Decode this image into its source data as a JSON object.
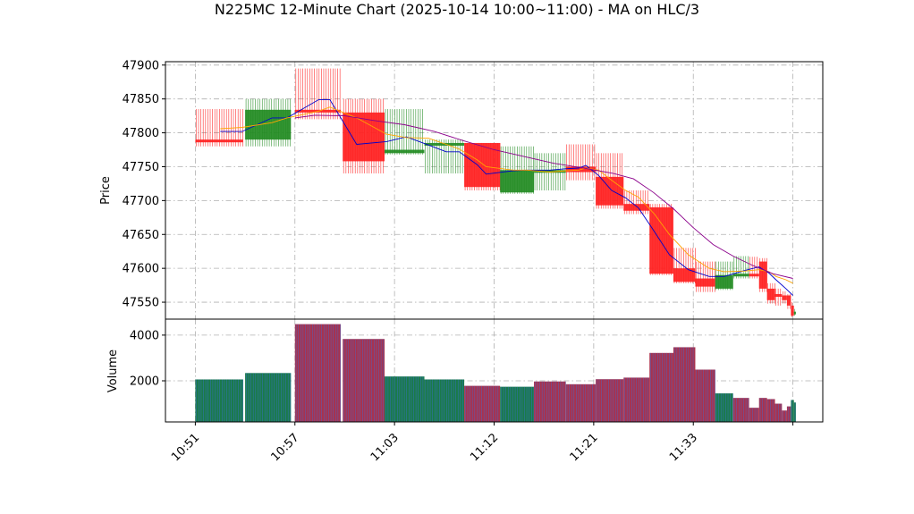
{
  "title": "N225MC 12-Minute Chart (2025-10-14 10:00~11:00) - MA on HLC/3",
  "colors": {
    "up": "#228b22",
    "down": "#ff2020",
    "vol_up": "#1a7a4a",
    "vol_down": "#a8324e",
    "vol_stripe": "#3b6fd6",
    "ma_short": "#0000cc",
    "ma_mid": "#ffa500",
    "ma_long": "#8b008b",
    "grid": "#b0b0b0"
  },
  "chart_data": [
    {
      "type": "candlestick",
      "ylabel": "Price",
      "ylim": [
        47525,
        47905
      ],
      "yticks": [
        "47550",
        "47600",
        "47650",
        "47700",
        "47750",
        "47800",
        "47850",
        "47900"
      ],
      "xlim": [
        -3,
        63
      ],
      "xticks": [
        {
          "x": 0,
          "label": "10:51"
        },
        {
          "x": 10,
          "label": "10:57"
        },
        {
          "x": 20,
          "label": "11:03"
        },
        {
          "x": 30,
          "label": "11:12"
        },
        {
          "x": 40,
          "label": "11:21"
        },
        {
          "x": 50,
          "label": "11:33"
        },
        {
          "x": 60,
          "label": ""
        }
      ],
      "grid": true,
      "bars": [
        {
          "x": 0,
          "width": 4.8,
          "open": 47790,
          "close": 47786,
          "high": 47835,
          "low": 47780
        },
        {
          "x": 5,
          "width": 4.6,
          "open": 47790,
          "close": 47834,
          "high": 47850,
          "low": 47780
        },
        {
          "x": 10,
          "width": 4.6,
          "open": 47834,
          "close": 47830,
          "high": 47895,
          "low": 47820
        },
        {
          "x": 14.8,
          "width": 4.2,
          "open": 47830,
          "close": 47758,
          "high": 47850,
          "low": 47740
        },
        {
          "x": 19,
          "width": 4.0,
          "open": 47770,
          "close": 47775,
          "high": 47835,
          "low": 47768
        },
        {
          "x": 23,
          "width": 4.0,
          "open": 47782,
          "close": 47785,
          "high": 47790,
          "low": 47740
        },
        {
          "x": 27,
          "width": 3.6,
          "open": 47785,
          "close": 47720,
          "high": 47785,
          "low": 47715
        },
        {
          "x": 30.6,
          "width": 3.4,
          "open": 47712,
          "close": 47745,
          "high": 47780,
          "low": 47710
        },
        {
          "x": 34,
          "width": 3.2,
          "open": 47745,
          "close": 47745,
          "high": 47770,
          "low": 47715
        },
        {
          "x": 37.2,
          "width": 3.0,
          "open": 47750,
          "close": 47742,
          "high": 47783,
          "low": 47730
        },
        {
          "x": 40.2,
          "width": 2.8,
          "open": 47735,
          "close": 47693,
          "high": 47770,
          "low": 47688
        },
        {
          "x": 43,
          "width": 2.6,
          "open": 47695,
          "close": 47685,
          "high": 47715,
          "low": 47680
        },
        {
          "x": 45.6,
          "width": 2.4,
          "open": 47690,
          "close": 47592,
          "high": 47695,
          "low": 47590
        },
        {
          "x": 48,
          "width": 2.2,
          "open": 47600,
          "close": 47580,
          "high": 47630,
          "low": 47578
        },
        {
          "x": 50.2,
          "width": 2.0,
          "open": 47585,
          "close": 47573,
          "high": 47610,
          "low": 47565
        },
        {
          "x": 52.2,
          "width": 1.8,
          "open": 47570,
          "close": 47590,
          "high": 47610,
          "low": 47568
        },
        {
          "x": 54,
          "width": 1.6,
          "open": 47592,
          "close": 47592,
          "high": 47618,
          "low": 47585
        },
        {
          "x": 55.6,
          "width": 1.0,
          "open": 47592,
          "close": 47590,
          "high": 47617,
          "low": 47585
        },
        {
          "x": 56.6,
          "width": 0.8,
          "open": 47610,
          "close": 47570,
          "high": 47615,
          "low": 47565
        },
        {
          "x": 57.4,
          "width": 0.8,
          "open": 47570,
          "close": 47553,
          "high": 47578,
          "low": 47548
        },
        {
          "x": 58.2,
          "width": 0.7,
          "open": 47562,
          "close": 47558,
          "high": 47570,
          "low": 47545
        },
        {
          "x": 58.9,
          "width": 0.5,
          "open": 47560,
          "close": 47553,
          "high": 47566,
          "low": 47548
        },
        {
          "x": 59.4,
          "width": 0.4,
          "open": 47560,
          "close": 47545,
          "high": 47562,
          "low": 47540
        },
        {
          "x": 59.8,
          "width": 0.3,
          "open": 47545,
          "close": 47530,
          "high": 47550,
          "low": 47528
        },
        {
          "x": 60.1,
          "width": 0.2,
          "open": 47533,
          "close": 47536,
          "high": 47540,
          "low": 47530
        }
      ],
      "series": [
        {
          "role": "ma_short",
          "x": [
            2.5,
            4.7,
            7.7,
            9.2,
            12.4,
            13.5,
            16.2,
            19.2,
            21.2,
            23.4,
            25.2,
            26.5,
            28.3,
            29.2,
            31.9,
            33.3,
            35.6,
            37.3,
            38.5,
            39.2,
            40.5,
            41.8,
            43.2,
            44.5,
            46.1,
            47.6,
            49.5,
            51.6,
            53.1,
            55.2,
            56.6,
            57.6,
            58.3,
            59.3,
            60.0
          ],
          "y": [
            47802,
            47802,
            47822,
            47822,
            47849,
            47849,
            47783,
            47787,
            47794,
            47782,
            47772,
            47772,
            47753,
            47739,
            47744,
            47745,
            47745,
            47747,
            47748,
            47752,
            47737,
            47715,
            47704,
            47689,
            47654,
            47620,
            47598,
            47588,
            47588,
            47597,
            47602,
            47593,
            47583,
            47570,
            47560
          ]
        },
        {
          "role": "ma_mid",
          "x": [
            2.5,
            4.7,
            7.7,
            9.2,
            12.4,
            13.5,
            16.2,
            19.2,
            21.2,
            23.4,
            25.2,
            26.5,
            28.3,
            29.2,
            31.9,
            33.3,
            35.6,
            37.3,
            38.5,
            39.2,
            40.5,
            41.8,
            43.2,
            44.5,
            46.1,
            47.6,
            49.5,
            51.6,
            53.1,
            55.2,
            56.6,
            57.6,
            58.3,
            59.3,
            60.0
          ],
          "y": [
            47806,
            47808,
            47815,
            47822,
            47832,
            47838,
            47822,
            47798,
            47793,
            47792,
            47783,
            47776,
            47760,
            47750,
            47745,
            47745,
            47742,
            47744,
            47745,
            47748,
            47745,
            47730,
            47715,
            47705,
            47680,
            47650,
            47620,
            47600,
            47595,
            47596,
            47598,
            47595,
            47588,
            47583,
            47578
          ]
        },
        {
          "role": "ma_long",
          "x": [
            10.0,
            12.0,
            15.0,
            18.0,
            21.0,
            24.0,
            27.0,
            30.0,
            33.0,
            36.0,
            39.0,
            42.0,
            44.0,
            46.0,
            48.0,
            50.0,
            52.0,
            54.0,
            56.0,
            58.0,
            60.0
          ],
          "y": [
            47822,
            47826,
            47825,
            47818,
            47812,
            47802,
            47788,
            47775,
            47765,
            47755,
            47748,
            47740,
            47732,
            47712,
            47688,
            47660,
            47635,
            47618,
            47604,
            47592,
            47585
          ]
        }
      ]
    },
    {
      "type": "bar",
      "ylabel": "Volume",
      "ylim": [
        200,
        4700
      ],
      "yticks": [
        "2000",
        "4000"
      ],
      "grid": true,
      "bars": [
        {
          "x": 0,
          "width": 4.8,
          "value": 2060,
          "dir": "up"
        },
        {
          "x": 5,
          "width": 4.6,
          "value": 2340,
          "dir": "up"
        },
        {
          "x": 10,
          "width": 4.6,
          "value": 4480,
          "dir": "down"
        },
        {
          "x": 14.8,
          "width": 4.2,
          "value": 3830,
          "dir": "down"
        },
        {
          "x": 19,
          "width": 4.0,
          "value": 2190,
          "dir": "up"
        },
        {
          "x": 23,
          "width": 4.0,
          "value": 2060,
          "dir": "up"
        },
        {
          "x": 27,
          "width": 3.6,
          "value": 1780,
          "dir": "down"
        },
        {
          "x": 30.6,
          "width": 3.4,
          "value": 1740,
          "dir": "up"
        },
        {
          "x": 34,
          "width": 3.2,
          "value": 1970,
          "dir": "down"
        },
        {
          "x": 37.2,
          "width": 3.0,
          "value": 1850,
          "dir": "down"
        },
        {
          "x": 40.2,
          "width": 2.8,
          "value": 2070,
          "dir": "down"
        },
        {
          "x": 43,
          "width": 2.6,
          "value": 2140,
          "dir": "down"
        },
        {
          "x": 45.6,
          "width": 2.4,
          "value": 3220,
          "dir": "down"
        },
        {
          "x": 48,
          "width": 2.2,
          "value": 3470,
          "dir": "down"
        },
        {
          "x": 50.2,
          "width": 2.0,
          "value": 2490,
          "dir": "down"
        },
        {
          "x": 52.2,
          "width": 1.8,
          "value": 1450,
          "dir": "up"
        },
        {
          "x": 54,
          "width": 1.6,
          "value": 1250,
          "dir": "down"
        },
        {
          "x": 55.6,
          "width": 1.0,
          "value": 820,
          "dir": "down"
        },
        {
          "x": 56.6,
          "width": 0.8,
          "value": 1250,
          "dir": "down"
        },
        {
          "x": 57.4,
          "width": 0.8,
          "value": 1200,
          "dir": "down"
        },
        {
          "x": 58.2,
          "width": 0.7,
          "value": 1000,
          "dir": "down"
        },
        {
          "x": 58.9,
          "width": 0.5,
          "value": 700,
          "dir": "down"
        },
        {
          "x": 59.4,
          "width": 0.4,
          "value": 880,
          "dir": "down"
        },
        {
          "x": 59.8,
          "width": 0.3,
          "value": 1160,
          "dir": "up"
        },
        {
          "x": 60.1,
          "width": 0.2,
          "value": 1050,
          "dir": "up"
        }
      ]
    }
  ]
}
